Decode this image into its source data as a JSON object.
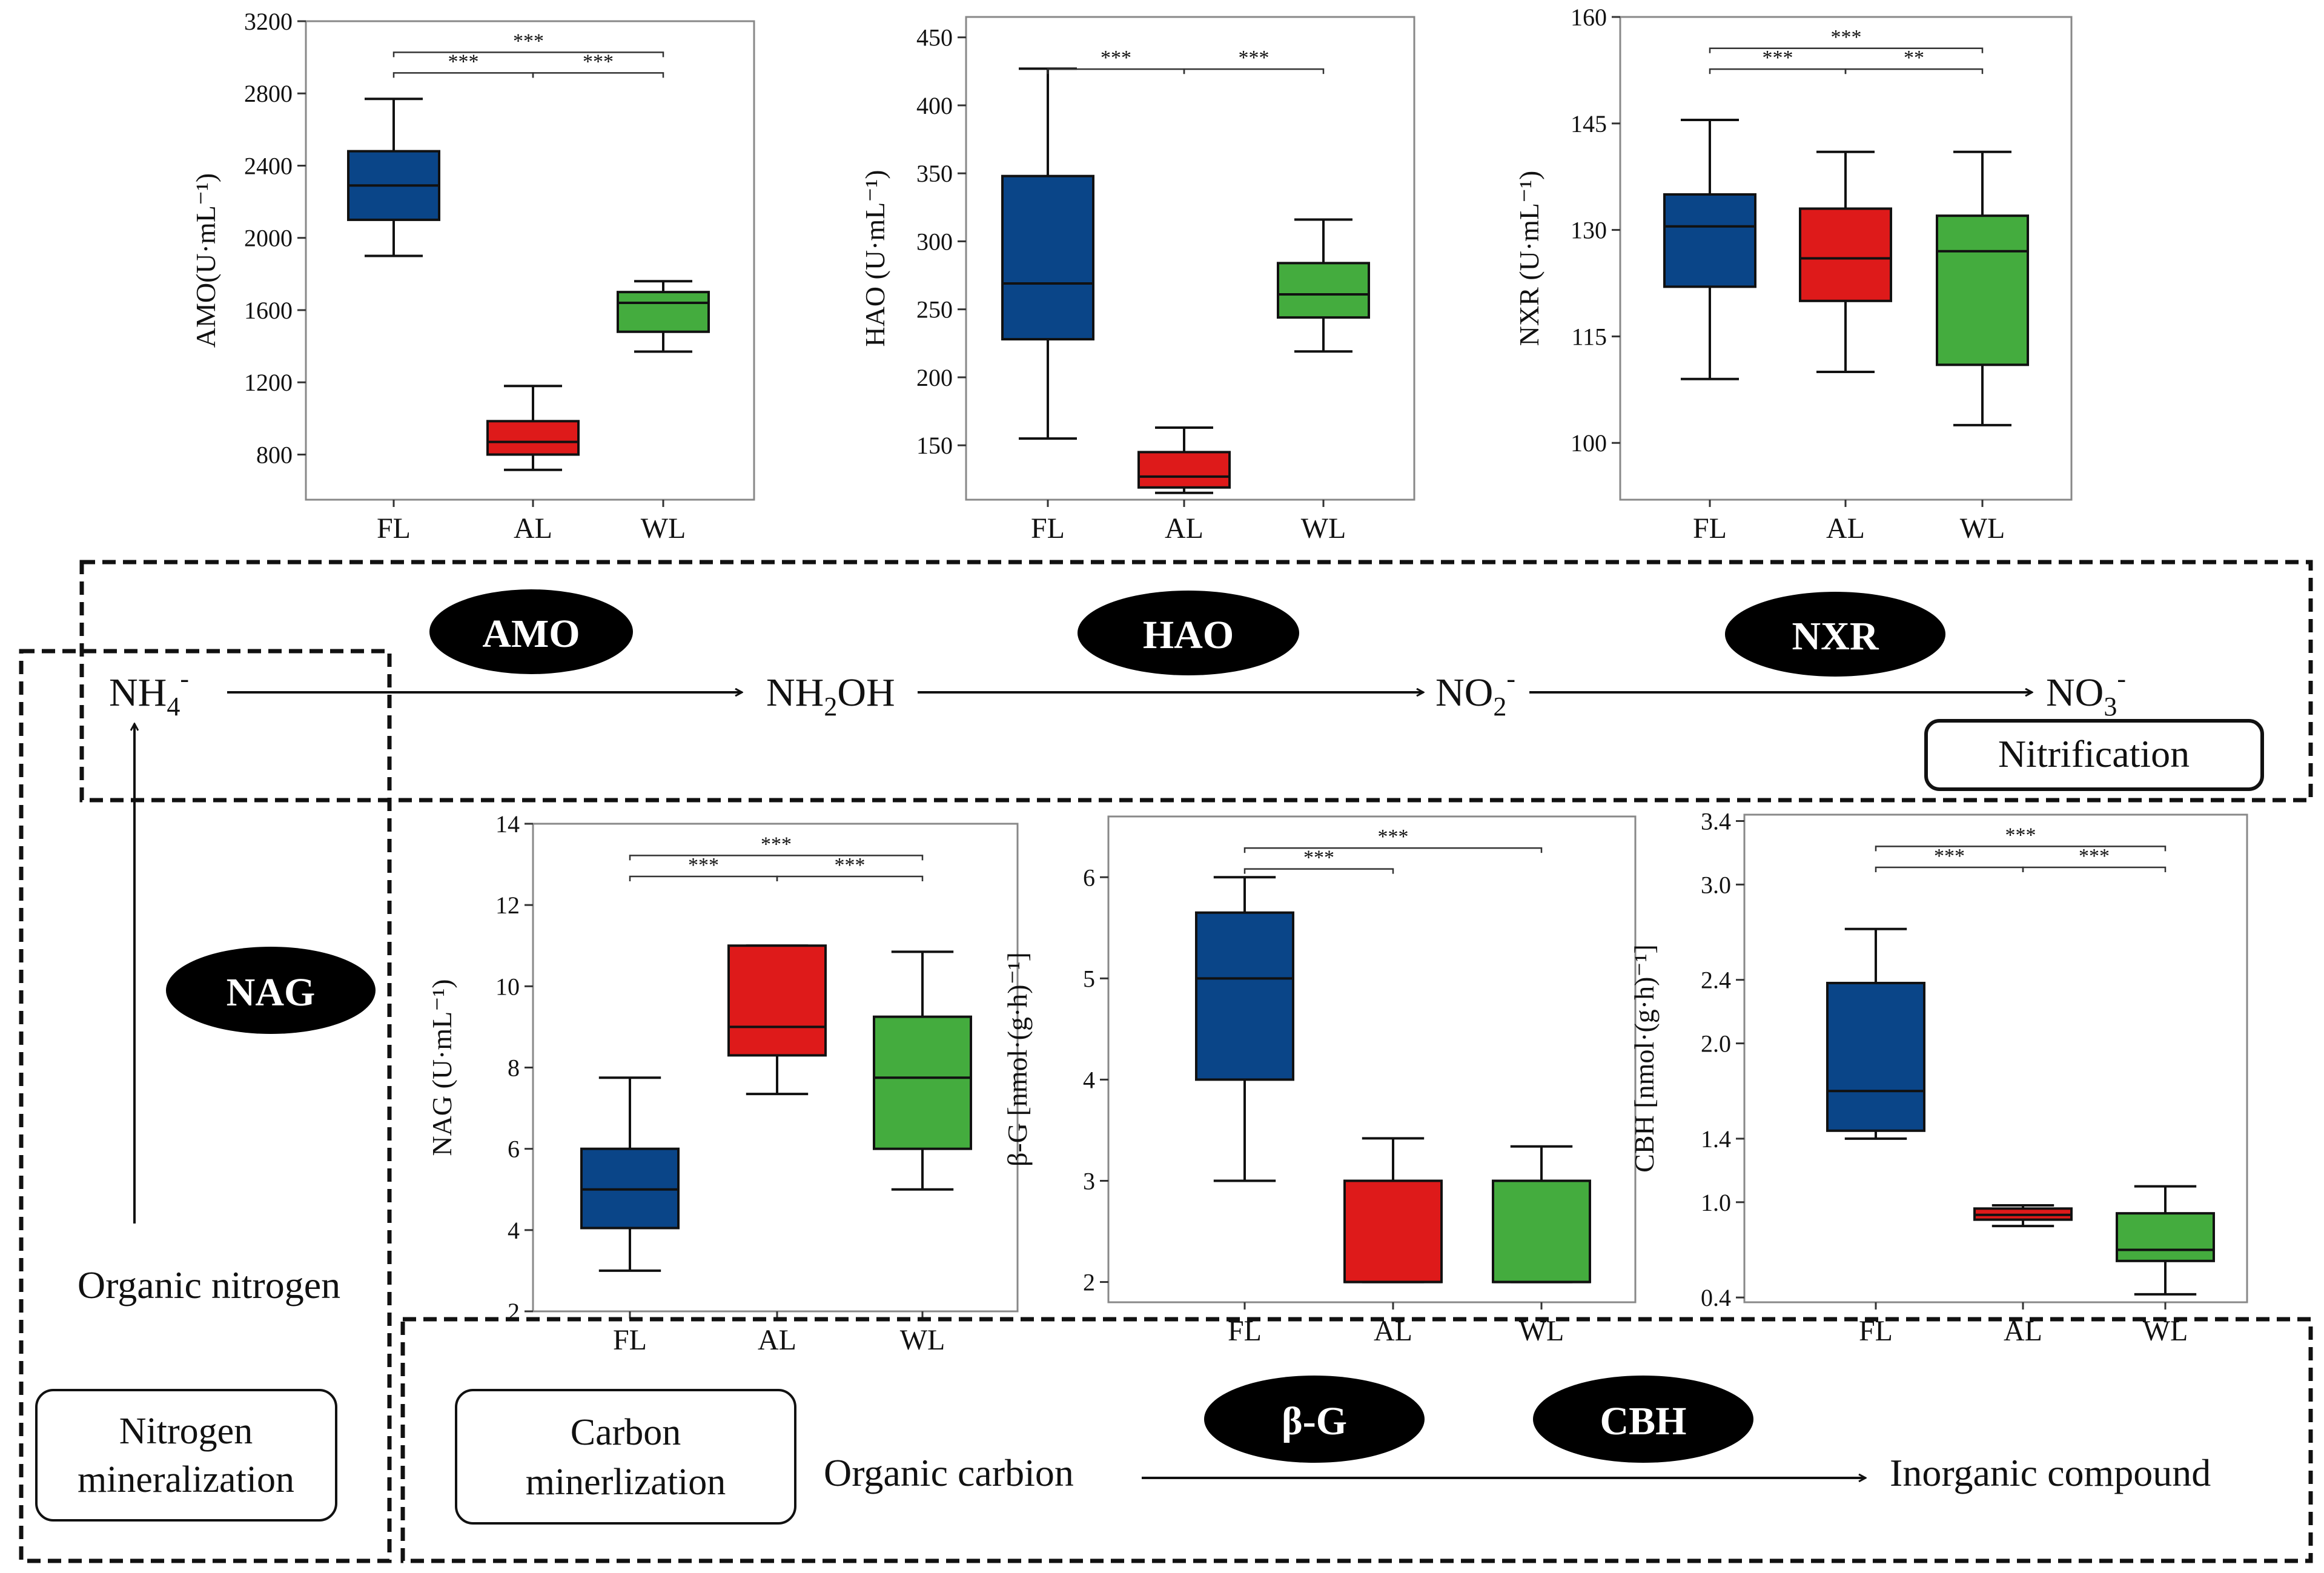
{
  "colors": {
    "FL": "#0a4588",
    "AL": "#de1a1a",
    "WL": "#44ac3e",
    "frame": "#888888",
    "ink": "#111111",
    "oval": "#000000"
  },
  "enzyme_ovals": {
    "AMO": "AMO",
    "HAO": "HAO",
    "NXR": "NXR",
    "NAG": "NAG",
    "BG": "β-G",
    "CBH": "CBH"
  },
  "nitrification": {
    "nh4": {
      "base": "NH",
      "sub": "4",
      "sup": "-"
    },
    "nh2oh": {
      "base1": "NH",
      "sub": "2",
      "base2": "OH"
    },
    "no2": {
      "base": "NO",
      "sub": "2",
      "sup": "-"
    },
    "no3": {
      "base": "NO",
      "sub": "3",
      "sup": "-"
    },
    "label": "Nitrification"
  },
  "mineralization": {
    "organic_nitrogen": "Organic nitrogen",
    "nitrogen_label": [
      "Nitrogen",
      "mineralization"
    ],
    "carbon_label": [
      "Carbon",
      "minerlization"
    ],
    "organic_carbon": "Organic carbion",
    "inorganic_compound": "Inorganic compound"
  },
  "chart_data": [
    {
      "id": "amo",
      "type": "box",
      "ylabel": "AMO(U·mL⁻¹)",
      "categories": [
        "FL",
        "AL",
        "WL"
      ],
      "ylim": [
        550,
        3200
      ],
      "yticks": [
        800,
        1200,
        1600,
        2000,
        2400,
        2800,
        3200
      ],
      "boxes": [
        {
          "category": "FL",
          "min": 1900,
          "q1": 2100,
          "median": 2290,
          "q3": 2480,
          "max": 2770
        },
        {
          "category": "AL",
          "min": 715,
          "q1": 800,
          "median": 870,
          "q3": 985,
          "max": 1180
        },
        {
          "category": "WL",
          "min": 1370,
          "q1": 1480,
          "median": 1640,
          "q3": 1700,
          "max": 1760
        }
      ],
      "significance": [
        {
          "from": "FL",
          "to": "AL",
          "label": "***"
        },
        {
          "from": "FL",
          "to": "WL",
          "label": "***"
        },
        {
          "from": "AL",
          "to": "WL",
          "label": "***"
        }
      ]
    },
    {
      "id": "hao",
      "type": "box",
      "ylabel": "HAO (U·mL⁻¹)",
      "categories": [
        "FL",
        "AL",
        "WL"
      ],
      "ylim": [
        110,
        465
      ],
      "yticks": [
        150,
        200,
        250,
        300,
        350,
        400,
        450
      ],
      "boxes": [
        {
          "category": "FL",
          "min": 155,
          "q1": 228,
          "median": 269,
          "q3": 348,
          "max": 427
        },
        {
          "category": "AL",
          "min": 115,
          "q1": 119,
          "median": 127,
          "q3": 145,
          "max": 163
        },
        {
          "category": "WL",
          "min": 219,
          "q1": 244,
          "median": 261,
          "q3": 284,
          "max": 316
        }
      ],
      "significance": [
        {
          "from": "FL",
          "to": "AL",
          "label": "***"
        },
        {
          "from": "AL",
          "to": "WL",
          "label": "***"
        }
      ]
    },
    {
      "id": "nxr",
      "type": "box",
      "ylabel": "NXR (U·mL⁻¹)",
      "categories": [
        "FL",
        "AL",
        "WL"
      ],
      "ylim": [
        92,
        160
      ],
      "yticks": [
        100,
        115,
        130,
        145,
        160
      ],
      "boxes": [
        {
          "category": "FL",
          "min": 109,
          "q1": 122,
          "median": 130.5,
          "q3": 135,
          "max": 145.5
        },
        {
          "category": "AL",
          "min": 110,
          "q1": 120,
          "median": 126,
          "q3": 133,
          "max": 141
        },
        {
          "category": "WL",
          "min": 102.5,
          "q1": 111,
          "median": 127,
          "q3": 132,
          "max": 141
        }
      ],
      "significance": [
        {
          "from": "FL",
          "to": "AL",
          "label": "***"
        },
        {
          "from": "FL",
          "to": "WL",
          "label": "***"
        },
        {
          "from": "AL",
          "to": "WL",
          "label": "**"
        }
      ]
    },
    {
      "id": "nag",
      "type": "box",
      "ylabel": "NAG (U·mL⁻¹)",
      "categories": [
        "FL",
        "AL",
        "WL"
      ],
      "ylim": [
        2,
        14
      ],
      "yticks": [
        2,
        4,
        6,
        8,
        10,
        12,
        14
      ],
      "boxes": [
        {
          "category": "FL",
          "min": 3,
          "q1": 4.05,
          "median": 5,
          "q3": 6,
          "max": 7.75
        },
        {
          "category": "AL",
          "min": 7.35,
          "q1": 8.3,
          "median": 9,
          "q3": 11,
          "max": 11
        },
        {
          "category": "WL",
          "min": 5,
          "q1": 6,
          "median": 7.75,
          "q3": 9.25,
          "max": 10.85
        }
      ],
      "significance": [
        {
          "from": "FL",
          "to": "AL",
          "label": "***"
        },
        {
          "from": "FL",
          "to": "WL",
          "label": "***"
        },
        {
          "from": "AL",
          "to": "WL",
          "label": "***"
        }
      ]
    },
    {
      "id": "bg",
      "type": "box",
      "ylabel": "β-G [nmol·(g·h)⁻¹]",
      "categories": [
        "FL",
        "AL",
        "WL"
      ],
      "ylim": [
        1.8,
        6.6
      ],
      "yticks": [
        2,
        3,
        4,
        5,
        6
      ],
      "boxes": [
        {
          "category": "FL",
          "min": 3,
          "q1": 4,
          "median": 5,
          "q3": 5.65,
          "max": 6
        },
        {
          "category": "AL",
          "min": 2,
          "q1": 2,
          "median": 2,
          "q3": 3,
          "max": 3.42
        },
        {
          "category": "WL",
          "min": 2,
          "q1": 2,
          "median": 2,
          "q3": 3,
          "max": 3.34
        }
      ],
      "significance": [
        {
          "from": "FL",
          "to": "AL",
          "label": "***"
        },
        {
          "from": "FL",
          "to": "WL",
          "label": "***"
        }
      ]
    },
    {
      "id": "cbh",
      "type": "box",
      "ylabel": "CBH [nmol·(g·h)⁻¹]",
      "categories": [
        "FL",
        "AL",
        "WL"
      ],
      "ylim": [
        0.37,
        3.44
      ],
      "yticks": [
        0.4,
        1.0,
        1.4,
        2.0,
        2.4,
        3.0,
        3.4
      ],
      "ytick_labels": [
        "0.4",
        "1.0",
        "1.4",
        "2.0",
        "2.4",
        "3.0",
        "3.4"
      ],
      "boxes": [
        {
          "category": "FL",
          "min": 1.4,
          "q1": 1.45,
          "median": 1.7,
          "q3": 2.38,
          "max": 2.72
        },
        {
          "category": "AL",
          "min": 0.85,
          "q1": 0.89,
          "median": 0.92,
          "q3": 0.96,
          "max": 0.98
        },
        {
          "category": "WL",
          "min": 0.42,
          "q1": 0.63,
          "median": 0.7,
          "q3": 0.93,
          "max": 1.1
        }
      ],
      "significance": [
        {
          "from": "FL",
          "to": "AL",
          "label": "***"
        },
        {
          "from": "FL",
          "to": "WL",
          "label": "***"
        },
        {
          "from": "AL",
          "to": "WL",
          "label": "***"
        }
      ]
    }
  ]
}
